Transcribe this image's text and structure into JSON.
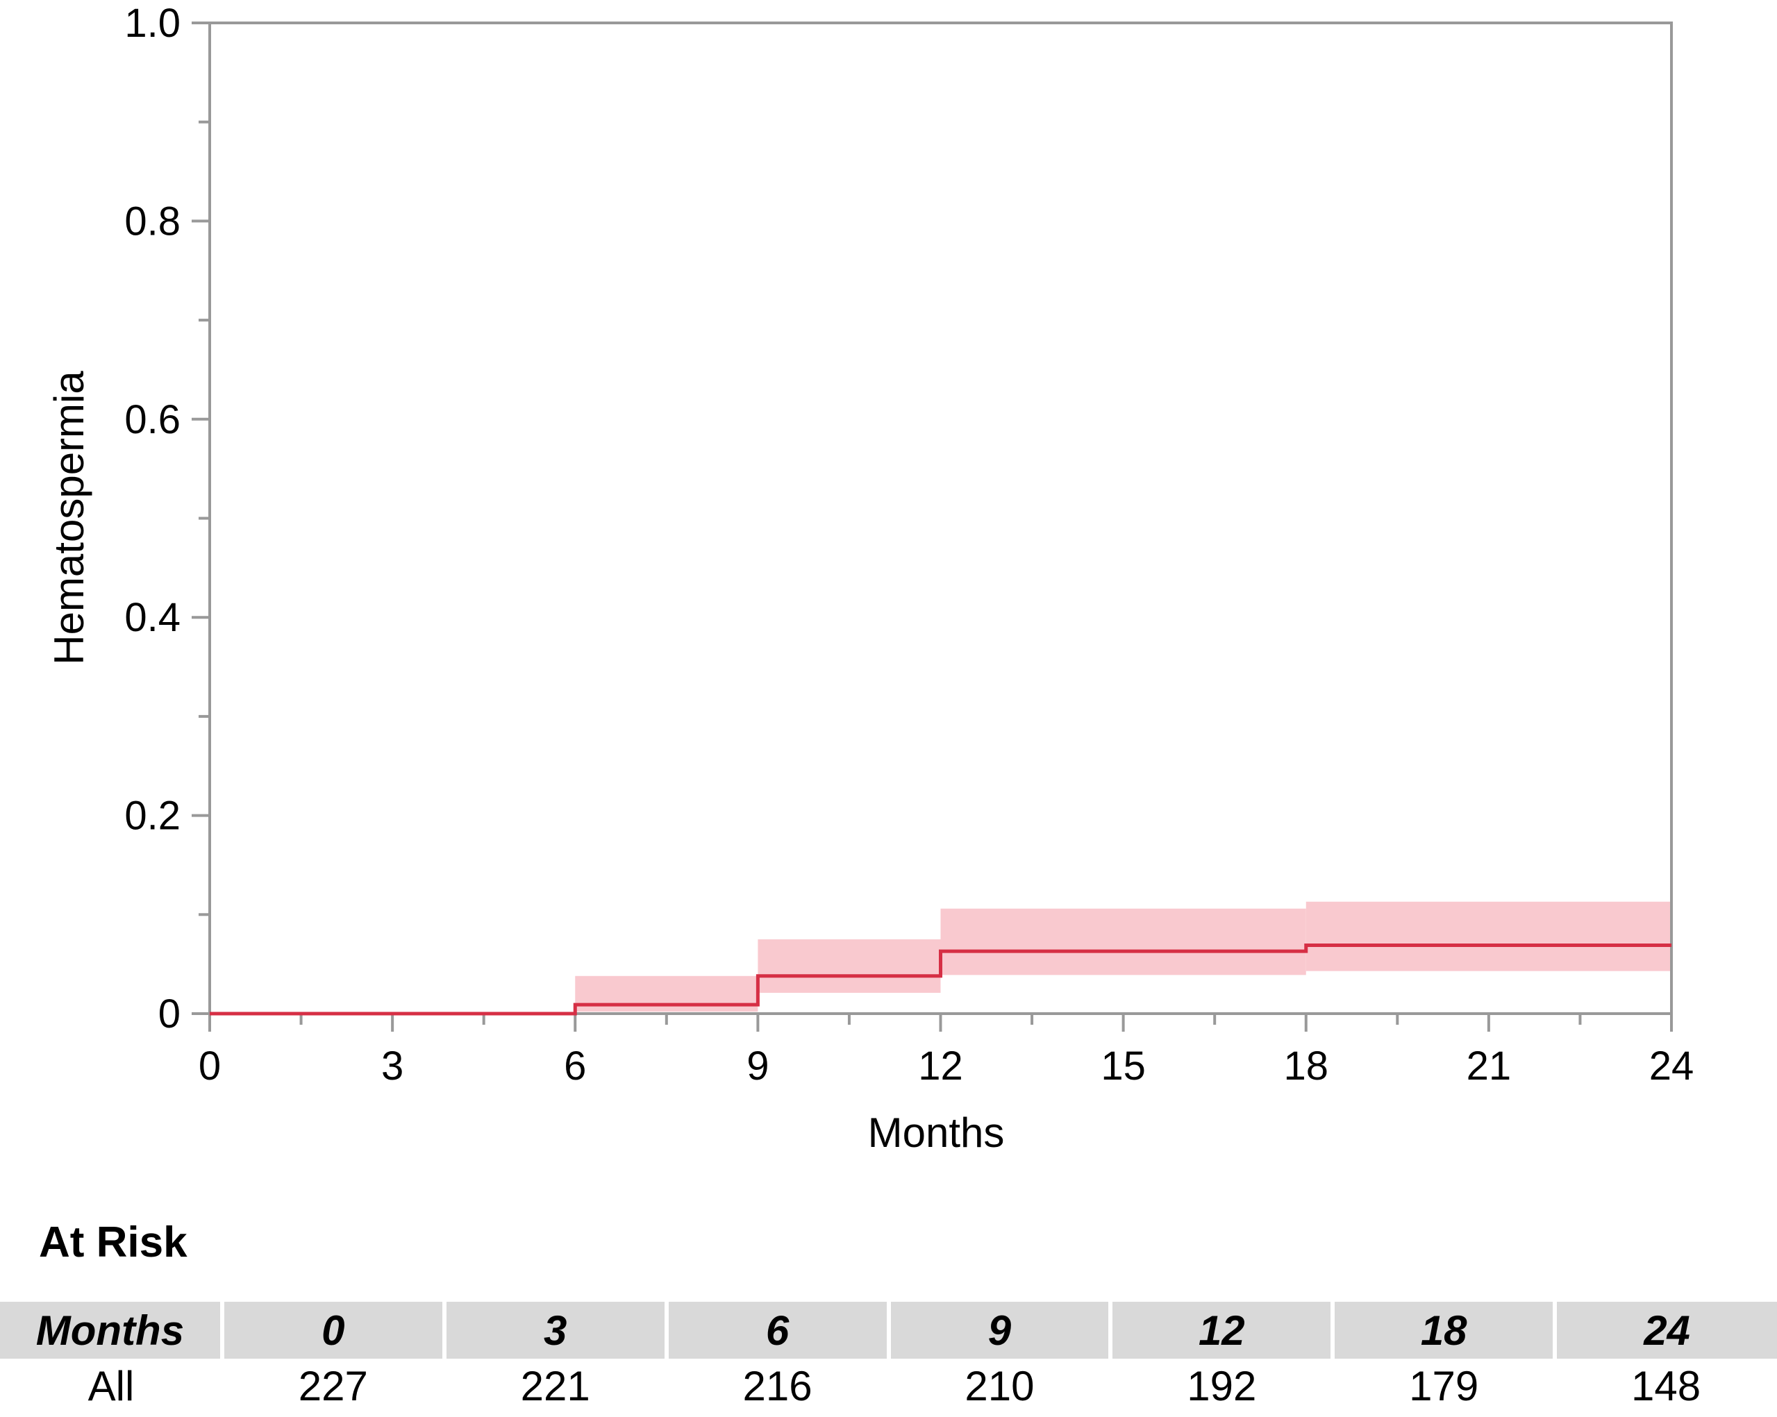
{
  "chart_data": {
    "type": "line",
    "subtype": "kaplan-meier-step-with-confidence-band",
    "ylabel": "Hematospermia",
    "xlabel": "Months",
    "xlim": [
      0,
      24
    ],
    "ylim": [
      0,
      1.0
    ],
    "x_ticks": [
      0,
      3,
      6,
      9,
      12,
      15,
      18,
      21,
      24
    ],
    "x_tick_labels": [
      "0",
      "3",
      "6",
      "9",
      "12",
      "15",
      "18",
      "21",
      "24"
    ],
    "y_ticks": [
      0,
      0.2,
      0.4,
      0.6,
      0.8,
      1.0
    ],
    "y_tick_labels": [
      "0",
      "0.2",
      "0.4",
      "0.6",
      "0.8",
      "1.0"
    ],
    "grid": false,
    "series": [
      {
        "color": "#d62f45",
        "band_color": "#f9c9cf",
        "steps": [
          {
            "x_start": 0,
            "x_end": 6,
            "y": 0,
            "lower": 0,
            "upper": 0
          },
          {
            "x_start": 6,
            "x_end": 9,
            "y": 0.009,
            "lower": 0.002,
            "upper": 0.038
          },
          {
            "x_start": 9,
            "x_end": 12,
            "y": 0.038,
            "lower": 0.021,
            "upper": 0.075
          },
          {
            "x_start": 12,
            "x_end": 18,
            "y": 0.063,
            "lower": 0.039,
            "upper": 0.106
          },
          {
            "x_start": 18,
            "x_end": 24,
            "y": 0.069,
            "lower": 0.043,
            "upper": 0.113
          }
        ]
      }
    ]
  },
  "risk_table": {
    "title": "At Risk",
    "header_label": "Months",
    "columns": [
      "0",
      "3",
      "6",
      "9",
      "12",
      "18",
      "24"
    ],
    "rows": [
      {
        "label": "All",
        "values": [
          "227",
          "221",
          "216",
          "210",
          "192",
          "179",
          "148"
        ]
      }
    ]
  }
}
